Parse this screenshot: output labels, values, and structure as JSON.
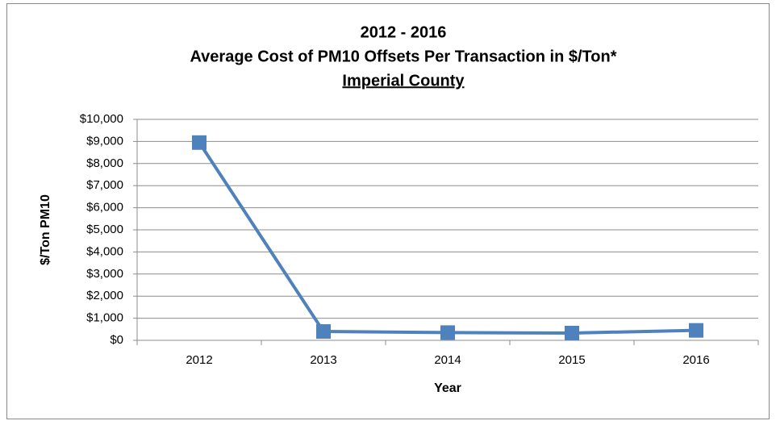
{
  "chart_data": {
    "type": "line",
    "title": [
      "2012 - 2016",
      "Average Cost of PM10 Offsets Per Transaction in $/Ton*",
      "Imperial County"
    ],
    "x_label": "Year",
    "y_label": "$/Ton PM10",
    "categories": [
      "2012",
      "2013",
      "2014",
      "2015",
      "2016"
    ],
    "series": [
      {
        "name": "Average Cost",
        "color": "#4f81bd",
        "values": [
          8950,
          400,
          350,
          330,
          450
        ]
      }
    ],
    "ylim": [
      0,
      10000
    ],
    "yticks": [
      {
        "value": 0,
        "label": "$0"
      },
      {
        "value": 1000,
        "label": "$1,000"
      },
      {
        "value": 2000,
        "label": "$2,000"
      },
      {
        "value": 3000,
        "label": "$3,000"
      },
      {
        "value": 4000,
        "label": "$4,000"
      },
      {
        "value": 5000,
        "label": "$5,000"
      },
      {
        "value": 6000,
        "label": "$6,000"
      },
      {
        "value": 7000,
        "label": "$7,000"
      },
      {
        "value": 8000,
        "label": "$8,000"
      },
      {
        "value": 9000,
        "label": "$9,000"
      },
      {
        "value": 10000,
        "label": "$10,000"
      }
    ],
    "grid": true
  }
}
